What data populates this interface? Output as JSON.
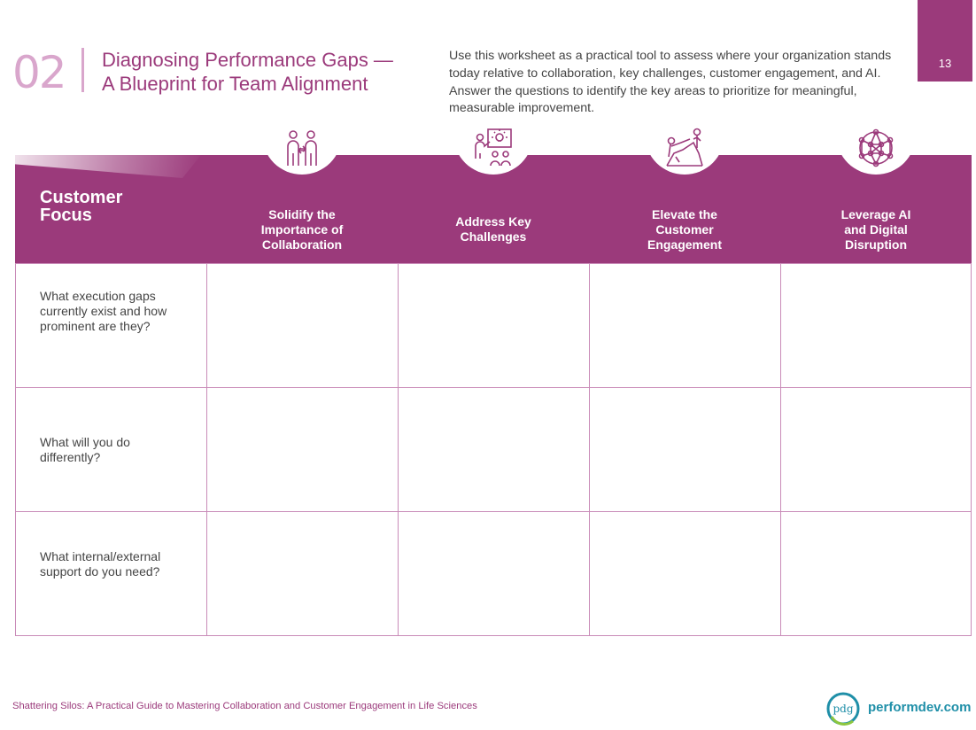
{
  "page": {
    "number": "13",
    "section_number": "02",
    "section_title_line1": "Diagnosing Performance Gaps —",
    "section_title_line2": "A Blueprint for Team Alignment",
    "intro": "Use this worksheet as a practical tool to assess where your organization stands today relative to collaboration, key challenges, customer engagement, and AI. Answer the questions to identify the key areas to prioritize for meaningful, measurable improvement."
  },
  "worksheet": {
    "focus_line1": "Customer",
    "focus_line2": "Focus",
    "columns": [
      {
        "label": "Solidify the\nImportance of\nCollaboration",
        "icon": "collaboration-people-icon"
      },
      {
        "label": "Address Key\nChallenges",
        "icon": "presentation-idea-icon"
      },
      {
        "label": "Elevate the\nCustomer\nEngagement",
        "icon": "climbing-support-icon"
      },
      {
        "label": "Leverage AI\nand Digital\nDisruption",
        "icon": "network-globe-icon"
      }
    ],
    "rows": [
      {
        "question": "What execution gaps currently exist and how prominent are they?"
      },
      {
        "question": "What will you do differently?"
      },
      {
        "question": "What internal/external support do you need?"
      }
    ]
  },
  "footer": {
    "text": "Shattering Silos: A Practical Guide to Mastering Collaboration and Customer Engagement in Life Sciences",
    "logo_letters": "pdg",
    "site": "performdev.com"
  },
  "colors": {
    "brand": "#9b3a7b",
    "brand_light": "#d9a6cc",
    "grid": "#c98bb8",
    "logo_teal": "#1f8fa8"
  }
}
